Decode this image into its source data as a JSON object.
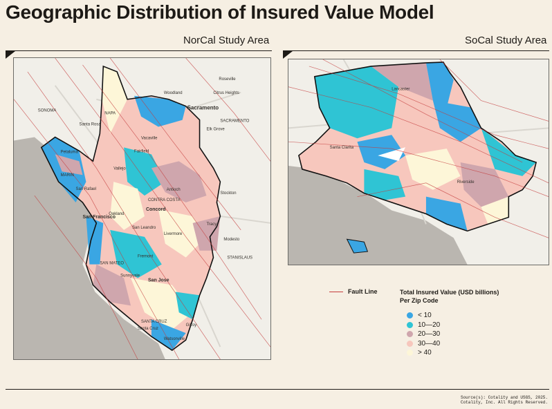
{
  "title": "Geographic Distribution of Insured Value Model",
  "panels": {
    "norcal": {
      "label": "NorCal Study Area",
      "places": [
        "Roseville",
        "Woodland",
        "Citrus Heights",
        "Sacramento",
        "Elk Grove",
        "SACRAMENTO",
        "SONOMA",
        "NAPA",
        "Santa Rosa",
        "Petaluma",
        "Vacaville",
        "Fairfield",
        "Vallejo",
        "Concord",
        "Antioch",
        "CONTRA COSTA",
        "MARIN",
        "San Rafael",
        "Stockton",
        "Tracy",
        "San Leandro",
        "Oakland",
        "San Francisco",
        "Livermore",
        "Fremont",
        "Modesto",
        "STANISLAUS",
        "SAN MATEO",
        "Sunnyvale",
        "San Jose",
        "SANTA CRUZ",
        "Santa Cruz",
        "Gilroy",
        "Watsonville"
      ]
    },
    "socal": {
      "label": "SoCal Study Area",
      "places": [
        "Lancaster",
        "Riverside",
        "Santa Clarita"
      ]
    }
  },
  "legend": {
    "fault_label": "Fault Line",
    "title_line1": "Total Insured Value (USD billions)",
    "title_line2": "Per Zip Code",
    "items": [
      {
        "label": "< 10",
        "color": "#3aa6e3"
      },
      {
        "label": "10—20",
        "color": "#2fc4d4"
      },
      {
        "label": "20—30",
        "color": "#cfa6ad"
      },
      {
        "label": "30—40",
        "color": "#f7c7bd"
      },
      {
        "label": "> 40",
        "color": "#fdf6d8"
      }
    ]
  },
  "colors": {
    "fault": "#c43b3b",
    "water": "#bab6b0",
    "land": "#f1efe9"
  },
  "source_line1": "Source(s): Cotality and USGS, 2025.",
  "source_line2": "Cotality, Inc. All Rights Reserved."
}
